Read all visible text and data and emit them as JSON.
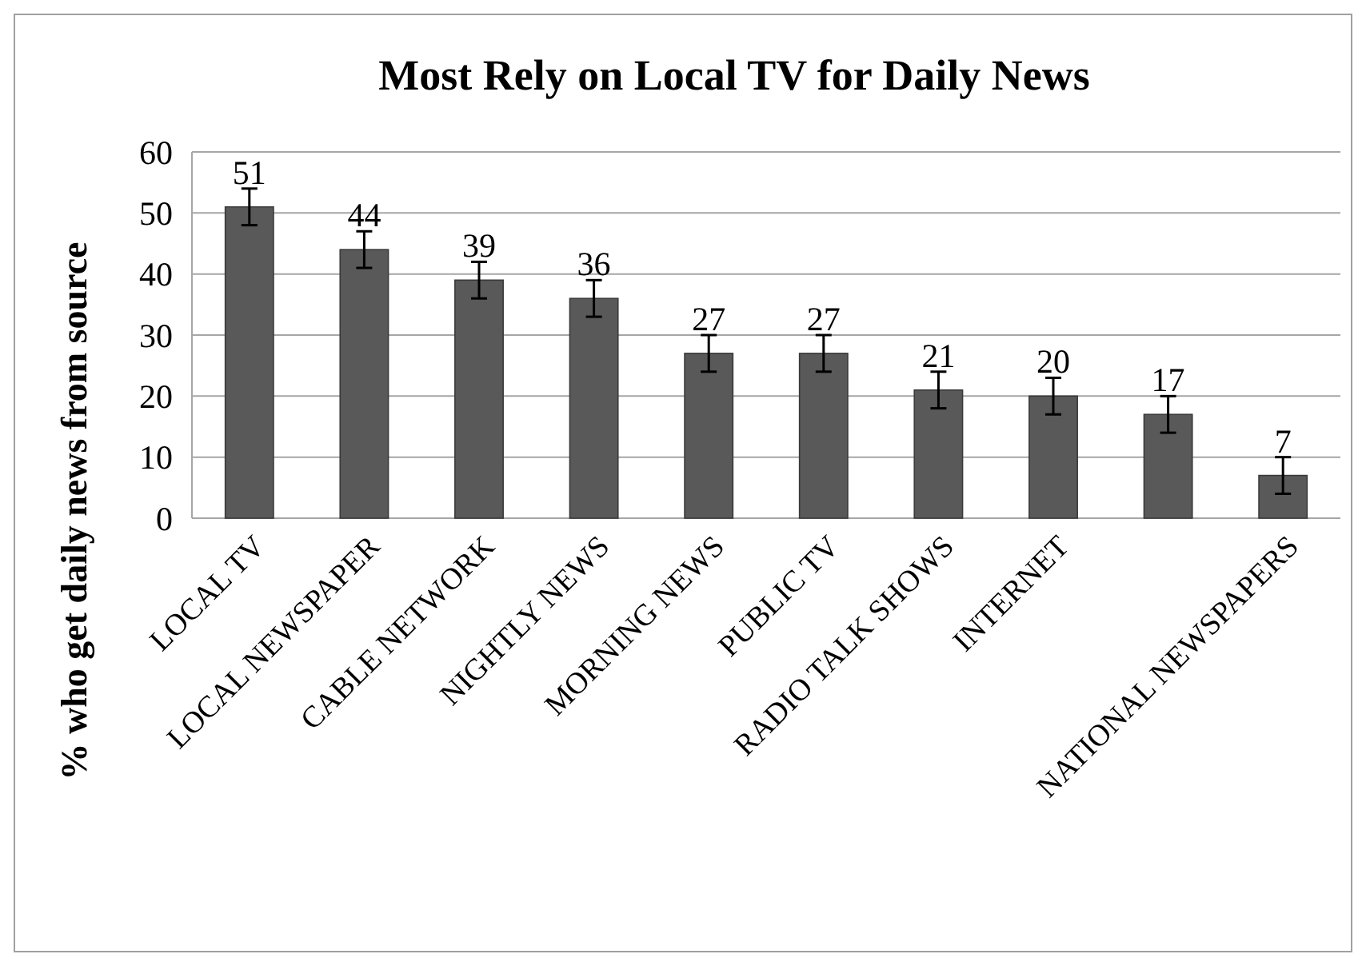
{
  "chart_data": {
    "type": "bar",
    "title": "Most Rely on Local TV for Daily News",
    "ylabel": "% who get daily news from source",
    "categories": [
      "LOCAL TV",
      "LOCAL NEWSPAPER",
      "CABLE NETWORK",
      "NIGHTLY NEWS",
      "MORNING NEWS",
      "PUBLIC TV",
      "RADIO TALK SHOWS",
      "INTERNET",
      null,
      "NATIONAL NEWSPAPERS"
    ],
    "values": [
      51,
      44,
      39,
      36,
      27,
      27,
      21,
      20,
      17,
      7
    ],
    "errors": [
      3,
      3,
      3,
      3,
      3,
      3,
      3,
      3,
      3,
      3
    ],
    "color": "#595959",
    "ylim": [
      0,
      60
    ],
    "yticks": [
      0,
      10,
      20,
      30,
      40,
      50,
      60
    ],
    "grid": "y",
    "data_labels": true
  }
}
